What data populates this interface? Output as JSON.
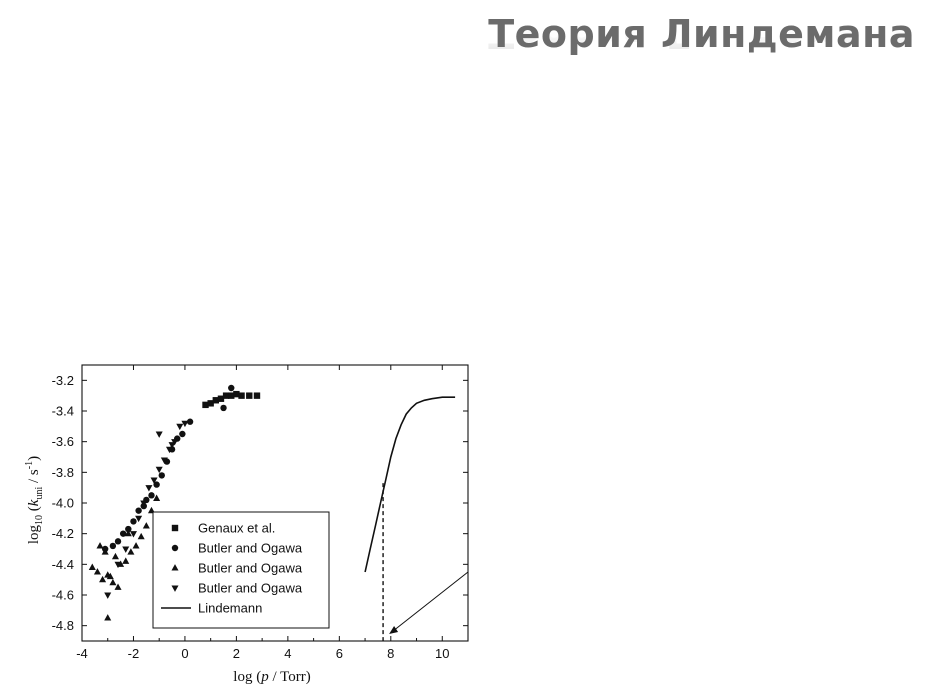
{
  "slide": {
    "title": "Теория Линдемана"
  },
  "chart_data": {
    "type": "scatter",
    "xlabel_parts": [
      "log (",
      "p",
      " / Torr)"
    ],
    "ylabel_parts": [
      "log",
      "10",
      " (",
      "k",
      "uni",
      " / s",
      "-1",
      ")"
    ],
    "xlim": [
      -4,
      11
    ],
    "ylim": [
      -4.9,
      -3.1
    ],
    "xticks": [
      -4,
      -2,
      0,
      2,
      4,
      6,
      8,
      10
    ],
    "xtick_labels": [
      "-4",
      "-2",
      "0",
      "2",
      "4",
      "6",
      "8",
      "10"
    ],
    "yticks": [
      -4.8,
      -4.6,
      -4.4,
      -4.2,
      -4.0,
      -3.8,
      -3.6,
      -3.4,
      -3.2
    ],
    "ytick_labels": [
      "-4.8",
      "-4.6",
      "-4.4",
      "-4.2",
      "-4.0",
      "-3.8",
      "-3.6",
      "-3.4",
      "-3.2"
    ],
    "legend_position": "bottom-left",
    "series": [
      {
        "name": "Genaux et al.",
        "marker": "square",
        "x": [
          0.8,
          1.0,
          1.2,
          1.4,
          1.6,
          1.8,
          2.0,
          2.2,
          2.5,
          2.8
        ],
        "y": [
          -3.36,
          -3.35,
          -3.33,
          -3.32,
          -3.3,
          -3.3,
          -3.29,
          -3.3,
          -3.3,
          -3.3
        ]
      },
      {
        "name": "Butler and Ogawa",
        "marker": "circle",
        "x": [
          -3.1,
          -2.8,
          -2.6,
          -2.4,
          -2.2,
          -2.0,
          -1.8,
          -1.6,
          -1.5,
          -1.3,
          -1.1,
          -0.9,
          -0.7,
          -0.5,
          -0.3,
          -0.1,
          0.2,
          1.5,
          1.8
        ],
        "y": [
          -4.3,
          -4.28,
          -4.25,
          -4.2,
          -4.17,
          -4.12,
          -4.05,
          -4.02,
          -3.98,
          -3.95,
          -3.88,
          -3.82,
          -3.73,
          -3.65,
          -3.58,
          -3.55,
          -3.47,
          -3.38,
          -3.25
        ]
      },
      {
        "name": "Butler and Ogawa",
        "marker": "triangle-up",
        "x": [
          -3.6,
          -3.4,
          -3.2,
          -3.0,
          -2.8,
          -2.6,
          -3.3,
          -3.1,
          -2.9,
          -2.7,
          -2.5,
          -2.3,
          -2.1,
          -1.9,
          -1.7,
          -1.5,
          -1.3,
          -1.1,
          -3.0,
          -2.2
        ],
        "y": [
          -4.42,
          -4.45,
          -4.5,
          -4.47,
          -4.52,
          -4.55,
          -4.28,
          -4.32,
          -4.48,
          -4.35,
          -4.4,
          -4.38,
          -4.32,
          -4.28,
          -4.22,
          -4.15,
          -4.05,
          -3.97,
          -4.75,
          -4.2
        ]
      },
      {
        "name": "Butler and Ogawa",
        "marker": "triangle-down",
        "x": [
          -3.0,
          -2.6,
          -2.3,
          -2.0,
          -1.8,
          -1.6,
          -1.4,
          -1.2,
          -1.0,
          -0.8,
          -0.6,
          -0.4,
          -0.2,
          0.0,
          -1.0,
          -0.5
        ],
        "y": [
          -4.6,
          -4.4,
          -4.3,
          -4.2,
          -4.1,
          -4.0,
          -3.9,
          -3.85,
          -3.78,
          -3.72,
          -3.65,
          -3.6,
          -3.5,
          -3.48,
          -3.55,
          -3.62
        ]
      },
      {
        "name": "Lindemann",
        "marker": "line",
        "x": [
          7.0,
          7.2,
          7.4,
          7.6,
          7.8,
          8.0,
          8.2,
          8.4,
          8.6,
          8.8,
          9.0,
          9.3,
          9.6,
          10.0,
          10.5
        ],
        "y": [
          -4.45,
          -4.3,
          -4.15,
          -4.0,
          -3.85,
          -3.7,
          -3.58,
          -3.49,
          -3.42,
          -3.38,
          -3.35,
          -3.33,
          -3.32,
          -3.31,
          -3.31
        ]
      }
    ],
    "annotations": {
      "dashed_marker_x": 7.7,
      "dashed_marker_y": -3.87
    }
  }
}
